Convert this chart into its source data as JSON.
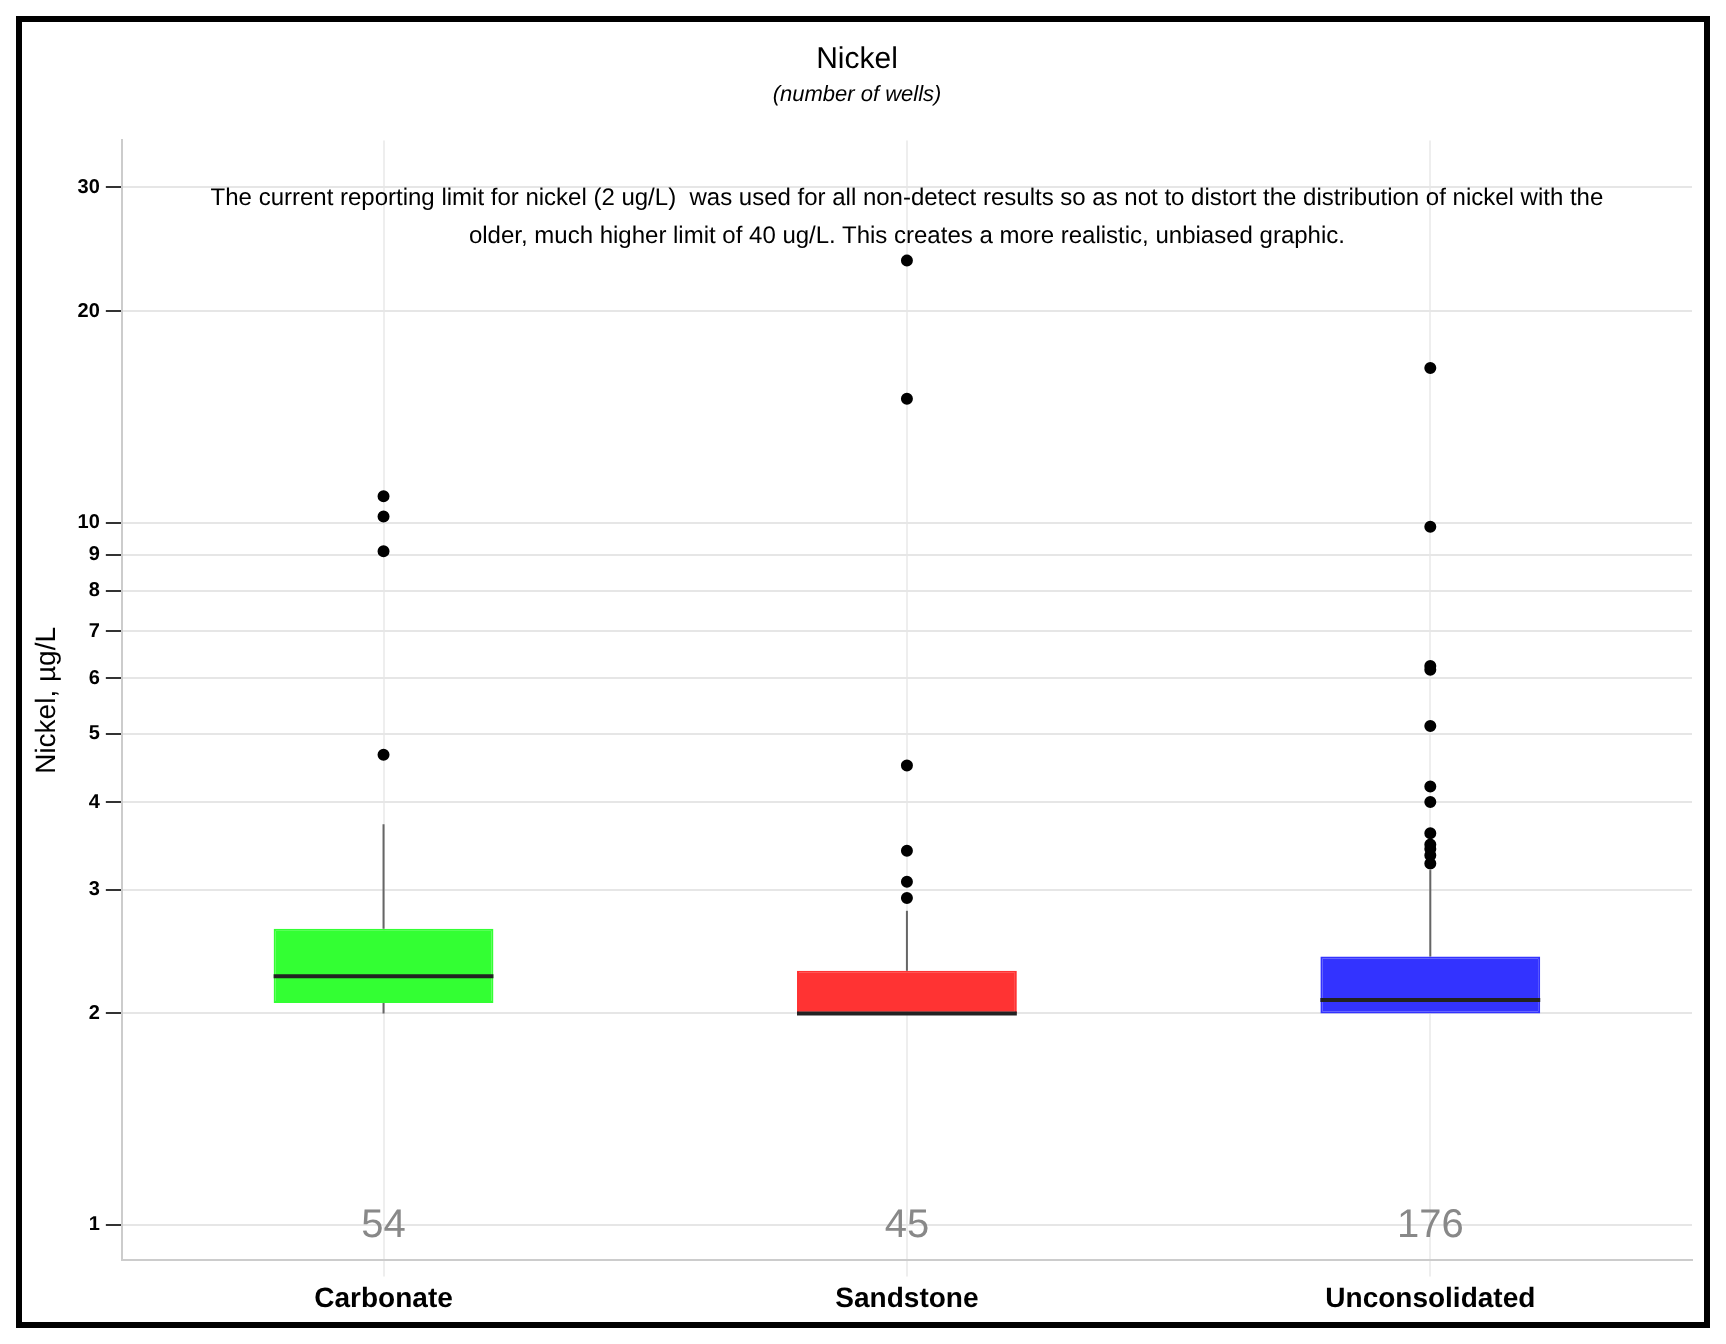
{
  "chart_data": {
    "type": "box",
    "title": "Nickel",
    "subtitle": "(number of wells)",
    "ylabel": "Nickel, µg/L",
    "categories": [
      "Carbonate",
      "Sandstone",
      "Unconsolidated"
    ],
    "colors": [
      "#33ff33",
      "#ff3333",
      "#3333ff"
    ],
    "boxes": [
      {
        "low": 2.0,
        "q1": 2.07,
        "median": 2.26,
        "q3": 2.64,
        "high": 3.72,
        "outliers": [
          4.67,
          9.1,
          10.2,
          10.9
        ]
      },
      {
        "low": 2.0,
        "q1": 2.0,
        "median": 2.0,
        "q3": 2.3,
        "high": 2.8,
        "outliers": [
          2.92,
          3.08,
          3.41,
          4.51,
          15.0,
          23.6
        ]
      },
      {
        "low": 2.0,
        "q1": 2.0,
        "median": 2.09,
        "q3": 2.41,
        "high": 3.2,
        "outliers": [
          3.27,
          3.36,
          3.43,
          3.48,
          3.61,
          4.0,
          4.21,
          5.13,
          6.17,
          6.25,
          9.86,
          16.6
        ]
      }
    ],
    "log": "y",
    "ylim": [
      0.89,
      35
    ],
    "yticks": [
      1,
      2,
      3,
      4,
      5,
      6,
      7,
      8,
      9,
      10,
      20,
      30
    ],
    "grid": true,
    "annotations": [
      "The current reporting limit for nickel (2 ug/L)  was used for all non-detect results so as not to distort the distribution of nickel with the older, much higher limit of 40 ug/L. This creates a more realistic, unbiased graphic.",
      "54",
      "45",
      "176"
    ]
  }
}
